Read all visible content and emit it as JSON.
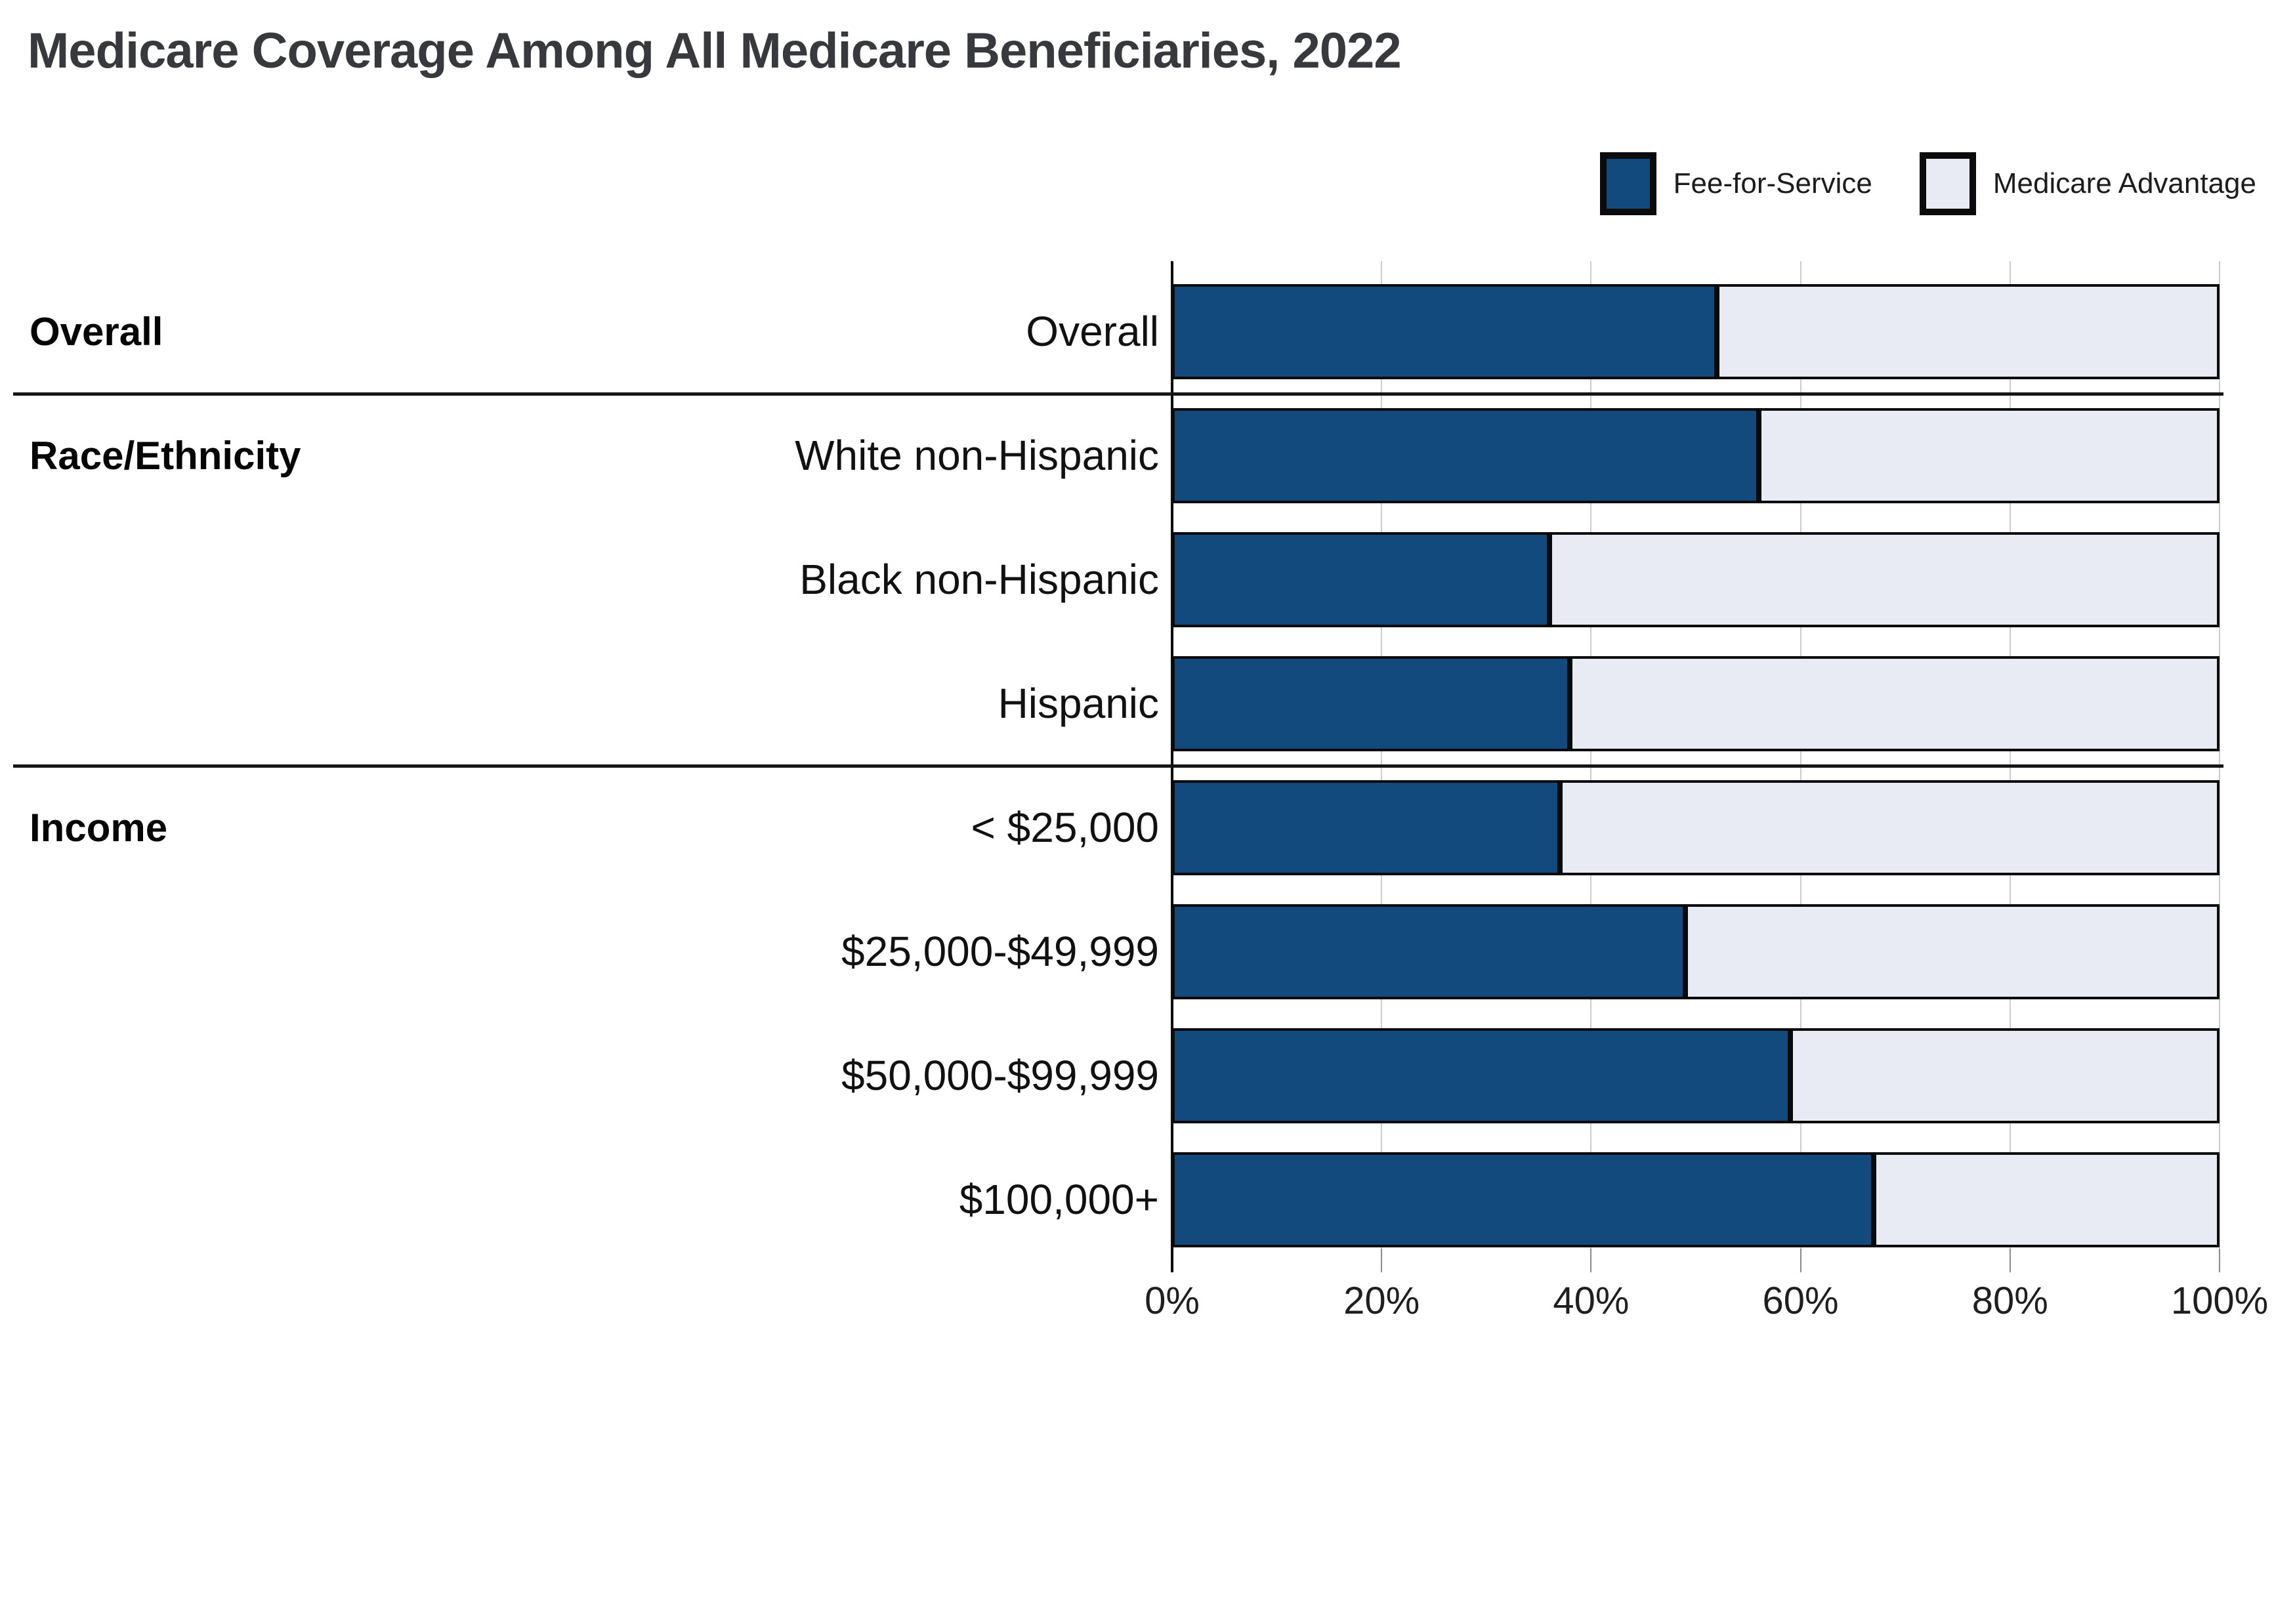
{
  "title": "Medicare Coverage Among All Medicare Beneficiaries, 2022",
  "legend": [
    {
      "label": "Fee-for-Service",
      "color": "#134A7D"
    },
    {
      "label": "Medicare Advantage",
      "color": "#E8EBF3"
    }
  ],
  "colors": {
    "fee_for_service": "#134A7D",
    "medicare_advantage": "#E8EBF3",
    "bar_border": "#0A0A0A",
    "gridline": "#CDCDCD",
    "separator": "#161616",
    "title_text": "#37393D",
    "background": "#FFFFFF"
  },
  "chart_data": {
    "type": "bar",
    "stacked": true,
    "orientation": "horizontal",
    "title": "Medicare Coverage Among All Medicare Beneficiaries, 2022",
    "xlabel": "",
    "ylabel": "",
    "xlim": [
      0,
      100
    ],
    "grid": true,
    "legend_position": "top-right",
    "groups": [
      {
        "label": "Overall",
        "count": 1
      },
      {
        "label": "Race/Ethnicity",
        "count": 3
      },
      {
        "label": "Income",
        "count": 4
      }
    ],
    "categories": [
      "Overall",
      "White non-Hispanic",
      "Black non-Hispanic",
      "Hispanic",
      "< $25,000",
      "$25,000-$49,999",
      "$50,000-$99,999",
      "$100,000+"
    ],
    "series": [
      {
        "name": "Fee-for-Service",
        "color": "#134A7D",
        "values": [
          52,
          56,
          36,
          38,
          37,
          49,
          59,
          67
        ]
      },
      {
        "name": "Medicare Advantage",
        "color": "#E8EBF3",
        "values": [
          48,
          44,
          64,
          62,
          63,
          51,
          41,
          33
        ]
      }
    ],
    "x_ticks": [
      {
        "label": "0%",
        "value": 0
      },
      {
        "label": "20%",
        "value": 20
      },
      {
        "label": "40%",
        "value": 40
      },
      {
        "label": "60%",
        "value": 60
      },
      {
        "label": "80%",
        "value": 80
      },
      {
        "label": "100%",
        "value": 100
      }
    ]
  }
}
